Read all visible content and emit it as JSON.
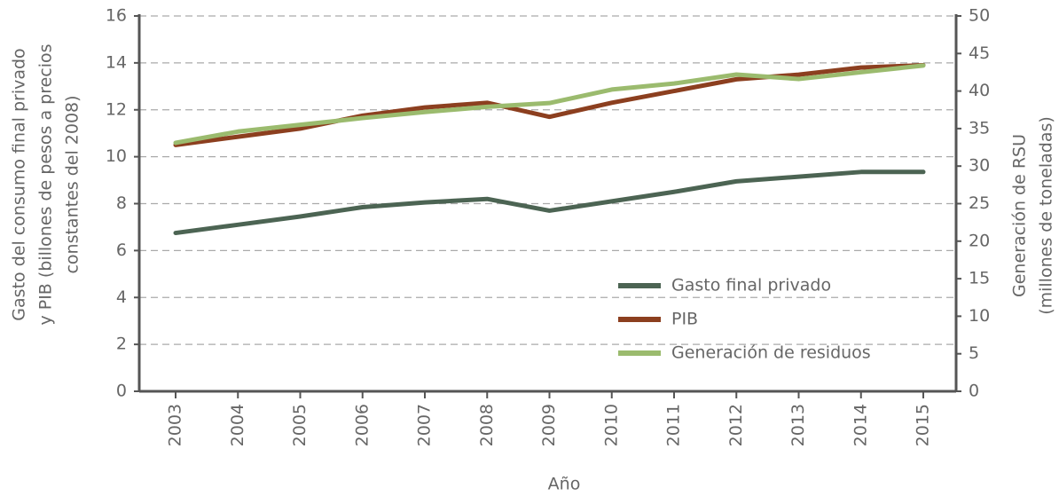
{
  "chart_data": {
    "type": "line",
    "ylabel": [
      "Gasto del consumo final privado",
      "y PIB (billones de pesos a precios",
      "constantes del 2008)"
    ],
    "y2label": [
      "Generación de RSU",
      "(millones de toneladas)"
    ],
    "xlabel": "Año",
    "categories": [
      "2003",
      "2004",
      "2005",
      "2006",
      "2007",
      "2008",
      "2009",
      "2010",
      "2011",
      "2012",
      "2013",
      "2014",
      "2015"
    ],
    "ylim": [
      0,
      16
    ],
    "yticks": [
      0,
      2,
      4,
      6,
      8,
      10,
      12,
      14,
      16
    ],
    "y2lim": [
      0,
      50
    ],
    "y2ticks": [
      0,
      5,
      10,
      15,
      20,
      25,
      30,
      35,
      40,
      45,
      50
    ],
    "grid": true,
    "legend": "lower right",
    "series": [
      {
        "name": "Gasto final privado",
        "color": "#4c6453",
        "values": [
          6.75,
          7.1,
          7.45,
          7.85,
          8.05,
          8.2,
          7.7,
          8.1,
          8.5,
          8.95,
          9.15,
          9.35,
          9.35
        ]
      },
      {
        "name": "PIB",
        "color": "#8c3f1f",
        "values": [
          10.5,
          10.85,
          11.2,
          11.75,
          12.1,
          12.3,
          11.7,
          12.3,
          12.8,
          13.3,
          13.5,
          13.8,
          13.9
        ]
      },
      {
        "name": "Generación de residuos",
        "color": "#9bbb6e",
        "axis": "y2",
        "values": [
          33.1,
          34.6,
          35.5,
          36.4,
          37.2,
          37.9,
          38.4,
          40.2,
          41.0,
          42.2,
          41.6,
          42.5,
          43.4
        ]
      }
    ]
  }
}
